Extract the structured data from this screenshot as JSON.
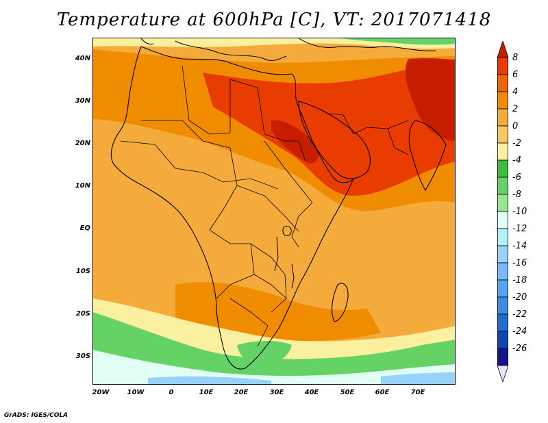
{
  "title": "Temperature at 600hPa [C], VT: 2017071418",
  "footer": "GrADS: IGES/COLA",
  "lat_labels": [
    "40N",
    "30N",
    "20N",
    "10N",
    "EQ",
    "10S",
    "20S",
    "30S"
  ],
  "lon_labels": [
    "20W",
    "10W",
    "0",
    "10E",
    "20E",
    "30E",
    "40E",
    "50E",
    "60E",
    "70E"
  ],
  "colorbar": {
    "labels": [
      "8",
      "6",
      "4",
      "2",
      "0",
      "-2",
      "-4",
      "-6",
      "-8",
      "-10",
      "-12",
      "-14",
      "-16",
      "-18",
      "-20",
      "-22",
      "-24",
      "-26"
    ],
    "colors": [
      "#c81e00",
      "#e83c00",
      "#f06400",
      "#f08c00",
      "#f5aa3c",
      "#f5c864",
      "#faf0a0",
      "#3cbe3c",
      "#64d264",
      "#96e696",
      "#e1fff5",
      "#b4f0fa",
      "#96d2fa",
      "#78b9fa",
      "#50a5f5",
      "#3c8ce6",
      "#1e6ed2",
      "#0a46b4",
      "#14148c",
      "#e6e6fa"
    ]
  },
  "regions": {
    "ocean_base": "#f5aa3c",
    "land_base": "#f5aa3c",
    "warm_north": "#f08c00",
    "hot_north": "#e83c00",
    "very_hot": "#c81e00",
    "cool_south": "#faf0a0",
    "green_south": "#64d264",
    "pale_south": "#e1fff5",
    "blue_south": "#96d2fa"
  }
}
